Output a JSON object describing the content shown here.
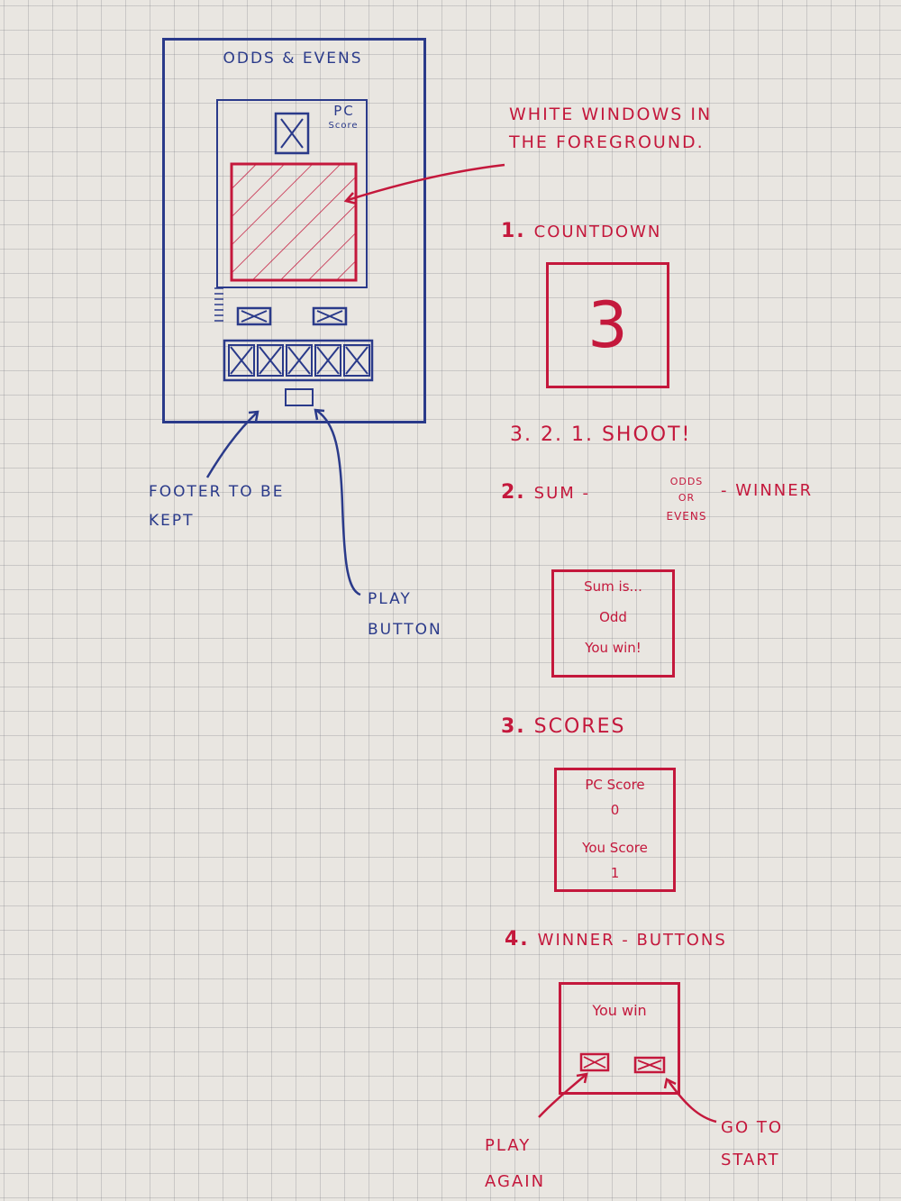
{
  "wireframe": {
    "title": "Odds & Evens",
    "pc_score_label": "PC",
    "pc_score_sub": "Score",
    "note_footer": "Footer to be kept",
    "note_play": "Play button"
  },
  "annotation_white_windows": "White windows in the foreground.",
  "steps": [
    {
      "number": "1.",
      "title": "Countdown"
    },
    {
      "number": "2.",
      "title": "Sum -",
      "sub": [
        "odds",
        "or",
        "evens"
      ],
      "tail": "- Winner"
    },
    {
      "number": "3.",
      "title": "Scores"
    },
    {
      "number": "4.",
      "title": "Winner - Buttons"
    }
  ],
  "countdown": {
    "digit": "3",
    "caption": "3. 2. 1. Shoot!"
  },
  "sum_box": {
    "line1": "Sum is...",
    "line2": "Odd",
    "line3": "You win!"
  },
  "scores_box": {
    "pc_label": "PC Score",
    "pc_value": "0",
    "you_label": "You Score",
    "you_value": "1"
  },
  "winner_box": {
    "title": "You win",
    "play_again": "Play again",
    "go_to_start": "Go to start"
  },
  "colors": {
    "blue_ink": "#2a3a8a",
    "red_ink": "#c4183c",
    "paper": "#e9e6e1"
  }
}
